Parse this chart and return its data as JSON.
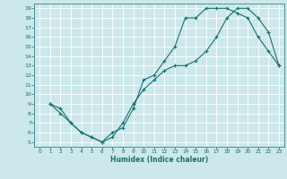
{
  "title": "",
  "xlabel": "Humidex (Indice chaleur)",
  "bg_color": "#cce8ea",
  "grid_color": "#ffffff",
  "line_color": "#1a7070",
  "xlim": [
    -0.5,
    23.5
  ],
  "ylim": [
    4.5,
    19.5
  ],
  "xticks": [
    0,
    1,
    2,
    3,
    4,
    5,
    6,
    7,
    8,
    9,
    10,
    11,
    12,
    13,
    14,
    15,
    16,
    17,
    18,
    19,
    20,
    21,
    22,
    23
  ],
  "yticks": [
    5,
    6,
    7,
    8,
    9,
    10,
    11,
    12,
    13,
    14,
    15,
    16,
    17,
    18,
    19
  ],
  "line1_x": [
    1,
    2,
    3,
    4,
    5,
    6,
    7,
    8,
    9,
    10,
    11,
    12,
    13,
    14,
    15,
    16,
    17,
    18,
    19,
    20,
    21,
    22,
    23
  ],
  "line1_y": [
    9,
    8,
    7,
    6,
    5.5,
    5,
    6,
    6.5,
    8.5,
    11.5,
    12,
    13.5,
    15,
    18,
    18,
    19,
    19,
    19,
    18.5,
    18,
    16,
    14.5,
    13
  ],
  "line2_x": [
    1,
    2,
    3,
    4,
    5,
    6,
    7,
    8,
    9,
    10,
    11,
    12,
    13,
    14,
    15,
    16,
    17,
    18,
    19,
    20,
    21,
    22,
    23
  ],
  "line2_y": [
    9,
    8.5,
    7,
    6,
    5.5,
    5,
    5.5,
    7,
    9,
    10.5,
    11.5,
    12.5,
    13,
    13,
    13.5,
    14.5,
    16,
    18,
    19,
    19,
    18,
    16.5,
    13
  ]
}
